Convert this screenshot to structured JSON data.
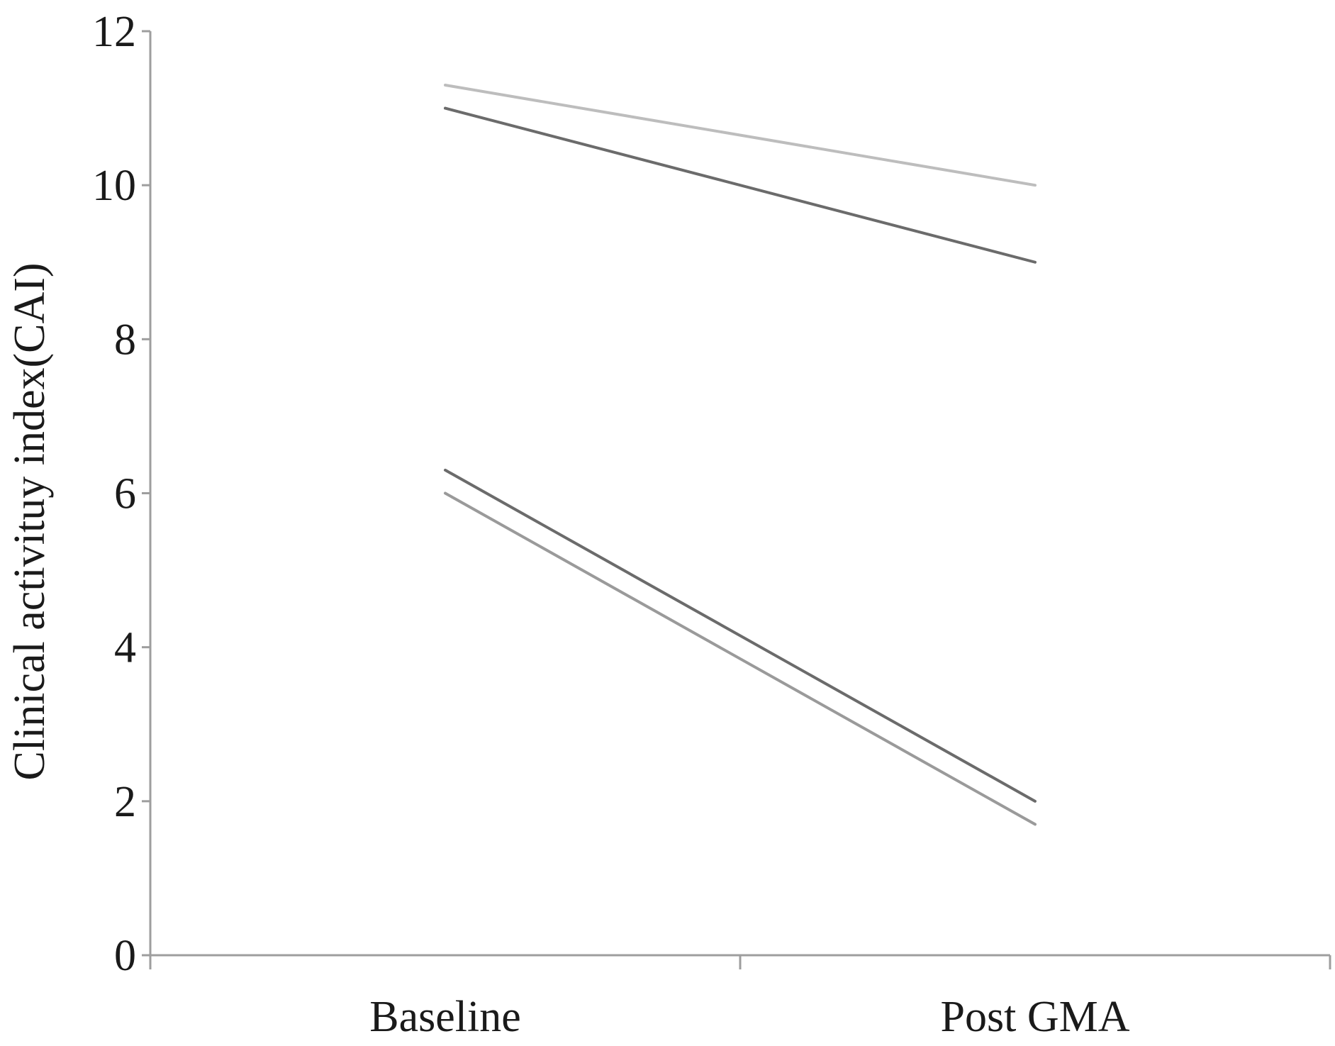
{
  "chart_data": {
    "type": "line",
    "title": "",
    "xlabel": "",
    "ylabel": "Clinical activituy index(CAI)",
    "categories": [
      "Baseline",
      "Post GMA"
    ],
    "ylim": [
      0,
      12
    ],
    "yticks": [
      0,
      2,
      4,
      6,
      8,
      10,
      12
    ],
    "grid": false,
    "legend": "none",
    "series": [
      {
        "values": [
          11.3,
          10.0
        ],
        "color": "#bdbdbd"
      },
      {
        "values": [
          11.0,
          9.0
        ],
        "color": "#6b6b6b"
      },
      {
        "values": [
          6.3,
          2.0
        ],
        "color": "#6b6b6b"
      },
      {
        "values": [
          6.0,
          1.7
        ],
        "color": "#9a9a9a"
      }
    ]
  }
}
